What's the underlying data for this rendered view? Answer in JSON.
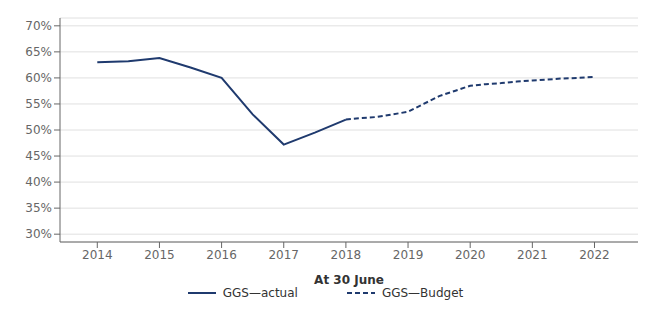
{
  "chart_data": {
    "type": "line",
    "xlabel": "At 30 June",
    "series": [
      {
        "name": "GGS—actual",
        "color": "#1F3A6E",
        "line_style": "solid",
        "x": [
          2014,
          2014.5,
          2015,
          2015.5,
          2016,
          2016.5,
          2017,
          2017.5,
          2018
        ],
        "values": [
          63.0,
          63.2,
          63.8,
          62.0,
          60.0,
          53.0,
          47.2,
          49.5,
          52.0
        ]
      },
      {
        "name": "GGS—Budget",
        "color": "#1F3A6E",
        "line_style": "dashed",
        "x": [
          2018,
          2018.25,
          2018.5,
          2018.75,
          2019,
          2019.25,
          2019.5,
          2019.75,
          2020,
          2020.25,
          2020.5,
          2020.75,
          2021,
          2021.25,
          2021.5,
          2021.75,
          2022
        ],
        "values": [
          52.0,
          52.3,
          52.5,
          53.0,
          53.5,
          55.0,
          56.5,
          57.5,
          58.5,
          58.8,
          59.0,
          59.3,
          59.5,
          59.7,
          59.9,
          60.0,
          60.2
        ]
      }
    ],
    "xlim": [
      2013.4,
      2022.7
    ],
    "ylim": [
      28.5,
      71.5
    ],
    "xticks": [
      2014,
      2015,
      2016,
      2017,
      2018,
      2019,
      2020,
      2021,
      2022
    ],
    "yticks": [
      {
        "value": 30,
        "label": "30%"
      },
      {
        "value": 35,
        "label": "35%"
      },
      {
        "value": 40,
        "label": "40%"
      },
      {
        "value": 45,
        "label": "45%"
      },
      {
        "value": 50,
        "label": "50%"
      },
      {
        "value": 55,
        "label": "55%"
      },
      {
        "value": 60,
        "label": "60%"
      },
      {
        "value": 65,
        "label": "65%"
      },
      {
        "value": 70,
        "label": "70%"
      }
    ],
    "grid": "y",
    "legend": "bottom"
  }
}
